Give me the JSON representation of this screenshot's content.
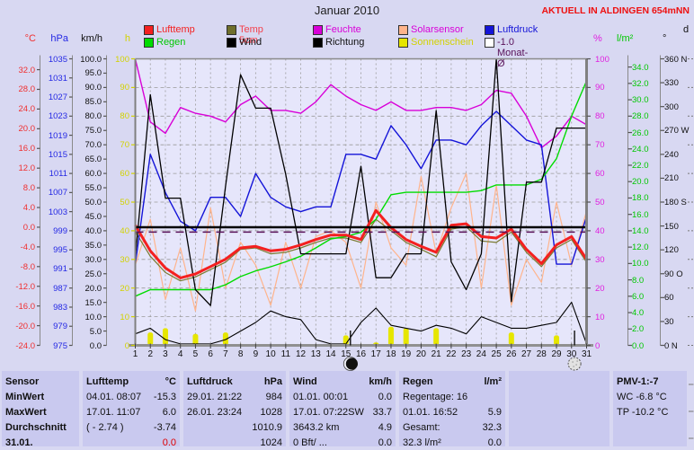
{
  "header": {
    "title": "Januar 2010",
    "status": "AKTUELL IN ALDINGEN 654mNN"
  },
  "legend": {
    "rows": [
      [
        {
          "label": "Lufttemp",
          "box": "#f42020",
          "text": "#f42020"
        },
        {
          "label": "Temp 5cm",
          "box": "#6f6f2c",
          "text": "#f4404c"
        },
        {
          "label": "Feuchte",
          "box": "#d800d8",
          "text": "#d800d8"
        },
        {
          "label": "Solarsensor",
          "box": "#ffb48c",
          "text": "#d800d8"
        },
        {
          "label": "Luftdruck",
          "box": "#1414d8",
          "text": "#1414d8"
        }
      ],
      [
        {
          "label": "Regen",
          "box": "#00dc00",
          "text": "#00c800"
        },
        {
          "label": "Wind",
          "box": "#000000",
          "text": "#101010"
        },
        {
          "label": "Richtung",
          "box": "#000000",
          "text": "#101010"
        },
        {
          "label": "Sonnenschein",
          "box": "#e6e600",
          "text": "#d2d200"
        },
        {
          "label": "-1.0 Monat-Ø",
          "box": "#ffffff",
          "text": "#581058"
        }
      ]
    ]
  },
  "chart_data": {
    "type": "line",
    "title": "Januar 2010",
    "x": {
      "days": [
        1,
        2,
        3,
        4,
        5,
        6,
        7,
        8,
        9,
        10,
        11,
        12,
        13,
        14,
        15,
        16,
        17,
        18,
        19,
        20,
        21,
        22,
        23,
        24,
        25,
        26,
        27,
        28,
        29,
        30,
        31
      ]
    },
    "axes": {
      "temp": {
        "unit": "°C",
        "color": "#f03030",
        "min": -24,
        "max": 34.2,
        "dec": 1,
        "ticks": [
          32,
          28,
          24,
          20,
          16,
          12,
          8,
          4,
          0,
          -4,
          -8,
          -12,
          -16,
          -20,
          -24
        ]
      },
      "hpa": {
        "unit": "hPa",
        "color": "#2428e4",
        "min": 975,
        "max": 1035,
        "dec": 0,
        "ticks": [
          1035,
          1031,
          1027,
          1023,
          1019,
          1015,
          1011,
          1007,
          1003,
          999,
          995,
          991,
          987,
          983,
          979,
          975
        ]
      },
      "kmh": {
        "unit": "km/h",
        "color": "#101010",
        "min": 0,
        "max": 100,
        "dec": 1,
        "ticks": [
          100,
          95,
          90,
          85,
          80,
          75,
          70,
          65,
          60,
          55,
          50,
          45,
          40,
          35,
          30,
          25,
          20,
          15,
          10,
          5,
          0
        ]
      },
      "h": {
        "unit": "h",
        "color": "#d2d200",
        "min": 0,
        "max": 100,
        "dec": 0,
        "ticks": [
          100,
          90,
          80,
          70,
          60,
          50,
          40,
          30,
          20,
          10,
          0
        ]
      },
      "pct": {
        "unit": "%",
        "color": "#e020e0",
        "min": 0,
        "max": 100,
        "dec": 0,
        "ticks": [
          100,
          90,
          80,
          70,
          60,
          50,
          40,
          30,
          20,
          10,
          0
        ]
      },
      "lm2": {
        "unit": "l/m²",
        "color": "#00c800",
        "min": 0,
        "max": 35,
        "dec": 1,
        "ticks": [
          34,
          32,
          30,
          28,
          26,
          24,
          22,
          20,
          18,
          16,
          14,
          12,
          10,
          8,
          6,
          4,
          2,
          0
        ]
      },
      "deg": {
        "unit": "°",
        "color": "#101010",
        "min": 0,
        "max": 360,
        "ticks": [
          {
            "v": 360,
            "t": "360 N"
          },
          {
            "v": 330,
            "t": "330"
          },
          {
            "v": 300,
            "t": "300"
          },
          {
            "v": 270,
            "t": "270 W"
          },
          {
            "v": 240,
            "t": "240"
          },
          {
            "v": 210,
            "t": "210"
          },
          {
            "v": 180,
            "t": "180 S"
          },
          {
            "v": 150,
            "t": "150"
          },
          {
            "v": 120,
            "t": "120"
          },
          {
            "v": 90,
            "t": "90 O"
          },
          {
            "v": 60,
            "t": "60"
          },
          {
            "v": 30,
            "t": "30"
          },
          {
            "v": 0,
            "t": "0 N"
          }
        ]
      },
      "d": {
        "unit": "d",
        "color": "#101010"
      }
    },
    "series": [
      {
        "name": "Solarsensor",
        "axis": "pct",
        "color": "#ffb48c",
        "width": 1.2,
        "values": [
          28,
          44,
          16,
          34,
          12,
          48,
          20,
          36,
          28,
          14,
          36,
          20,
          38,
          40,
          36,
          20,
          50,
          34,
          28,
          59,
          32,
          48,
          60,
          20,
          56,
          14,
          30,
          22,
          50,
          28,
          47
        ]
      },
      {
        "name": "Temp 5cm",
        "axis": "temp",
        "color": "#7a7a30",
        "width": 1.2,
        "values": [
          -0.9,
          -5.9,
          -9.2,
          -10.9,
          -10.1,
          -8.6,
          -7.1,
          -4.5,
          -4.2,
          -5.4,
          -5.1,
          -4.2,
          -3.1,
          -2.2,
          -2.2,
          -3.1,
          1.6,
          -0.7,
          -3.1,
          -4.5,
          -6.0,
          -0.4,
          0.1,
          -2.8,
          -3.1,
          -1.0,
          -5.1,
          -8.0,
          -4.2,
          -2.5,
          -7.1
        ]
      },
      {
        "name": "Feuchte",
        "axis": "pct",
        "color": "#d800d8",
        "width": 1.4,
        "values": [
          100,
          78,
          74,
          83,
          81,
          80,
          78,
          84,
          87,
          82,
          82,
          81,
          85,
          91,
          87,
          84,
          82,
          85,
          82,
          82,
          83,
          83,
          82,
          84,
          89,
          88,
          80,
          69,
          73,
          80,
          77
        ]
      },
      {
        "name": "Luftdruck",
        "axis": "hpa",
        "color": "#1414d8",
        "width": 1.4,
        "values": [
          992,
          1015,
          1007,
          1001,
          999,
          1006,
          1006,
          1002,
          1011,
          1006,
          1004,
          1003,
          1004,
          1004,
          1015,
          1015,
          1014,
          1021,
          1017,
          1012,
          1018,
          1018,
          1017,
          1021,
          1024,
          1021,
          1018,
          1017,
          992,
          992,
          1002
        ]
      },
      {
        "name": "Regen",
        "axis": "lm2",
        "color": "#00dc00",
        "width": 1.4,
        "values": [
          6.0,
          6.8,
          6.8,
          6.8,
          6.8,
          6.8,
          7.4,
          8.4,
          9.1,
          9.6,
          10.2,
          10.9,
          11.9,
          13.0,
          13.3,
          13.8,
          15.4,
          18.4,
          18.7,
          18.7,
          18.7,
          18.7,
          18.7,
          18.9,
          19.6,
          19.6,
          19.6,
          20.3,
          22.8,
          28.0,
          32.3
        ]
      },
      {
        "name": "Wind",
        "axis": "kmh",
        "color": "#000000",
        "width": 1.1,
        "values": [
          4,
          6,
          2,
          0.5,
          0.5,
          0.5,
          2,
          5,
          8,
          12,
          10,
          9,
          2,
          0.5,
          0.5,
          8,
          13,
          7,
          6,
          5,
          7,
          6,
          4,
          10,
          8,
          6,
          6,
          7,
          8,
          15,
          0.5
        ]
      },
      {
        "name": "Richtung",
        "axis": "deg",
        "color": "#000000",
        "width": 1.3,
        "values": [
          110,
          315,
          185,
          185,
          70,
          50,
          200,
          340,
          298,
          298,
          215,
          115,
          115,
          115,
          115,
          225,
          85,
          85,
          115,
          115,
          295,
          105,
          70,
          115,
          360,
          55,
          205,
          205,
          273,
          273,
          273
        ]
      },
      {
        "name": "Lufttemp",
        "axis": "temp",
        "color": "#f42020",
        "width": 3,
        "values": [
          0.4,
          -4.8,
          -8.3,
          -10.3,
          -9.5,
          -8.0,
          -6.5,
          -4.2,
          -3.9,
          -4.8,
          -4.5,
          -3.6,
          -2.5,
          -1.6,
          -1.6,
          -2.5,
          3.4,
          -0.1,
          -2.5,
          -3.9,
          -5.1,
          0.4,
          0.7,
          -1.9,
          -2.2,
          -0.4,
          -4.5,
          -7.4,
          -3.6,
          -1.9,
          -6.5
        ]
      }
    ],
    "bars": {
      "name": "Sonnenschein",
      "axis": "h",
      "color": "#e6e600",
      "values": [
        0,
        4.5,
        6,
        0.5,
        4,
        0.3,
        4.5,
        0.5,
        0,
        0.3,
        0.3,
        0.3,
        0.3,
        0,
        3.5,
        0.5,
        1,
        6.5,
        6,
        0.3,
        6,
        0.3,
        0.3,
        0.3,
        0,
        4.5,
        0.5,
        0.3,
        3.5,
        0.3,
        0
      ]
    },
    "reference_lines": [
      {
        "name": "null-grad-linie",
        "axis": "temp",
        "value": 0,
        "color": "#000000",
        "width": 2.5,
        "dash": ""
      },
      {
        "name": "monat-mittel",
        "axis": "temp",
        "value": -1.0,
        "color": "#581058",
        "width": 1.5,
        "dash": "9,6",
        "label": "-1.0 Monat-Ø"
      }
    ],
    "moons": [
      {
        "day": 15.3,
        "phase": "dark"
      },
      {
        "day": 30.2,
        "phase": "light"
      }
    ]
  },
  "table": {
    "row_labels": [
      "Sensor",
      "MinWert",
      "MaxWert",
      "Durchschnitt",
      "31.01."
    ],
    "columns": [
      {
        "header": "Lufttemp",
        "unit": "°C",
        "rows": [
          [
            "04.01.  08:07",
            "-15.3",
            ""
          ],
          [
            "17.01.  11:07",
            "6.0",
            ""
          ],
          [
            "( - 2.74 )",
            "-3.74",
            ""
          ],
          [
            "",
            "0.0",
            "red"
          ]
        ]
      },
      {
        "header": "Luftdruck",
        "unit": "hPa",
        "rows": [
          [
            "29.01.  21:22",
            "984",
            ""
          ],
          [
            "26.01.  23:24",
            "1028",
            ""
          ],
          [
            "",
            "1010.9",
            ""
          ],
          [
            "",
            "1024",
            ""
          ]
        ]
      },
      {
        "header": "Wind",
        "unit": "km/h",
        "rows": [
          [
            "01.01.  00:01",
            "0.0",
            ""
          ],
          [
            "17.01.  07:22SW",
            "33.7",
            ""
          ],
          [
            "3643.2 km",
            "4.9",
            ""
          ],
          [
            "0 Bft/ ...",
            "0.0",
            ""
          ]
        ]
      },
      {
        "header": "Regen",
        "unit": "l/m²",
        "rows": [
          [
            "Regentage: 16",
            "",
            ""
          ],
          [
            "01.01.  16:52",
            "5.9",
            ""
          ],
          [
            "Gesamt:",
            "32.3",
            ""
          ],
          [
            "32.3 l/m²",
            "0.0",
            ""
          ]
        ]
      },
      {
        "header": "",
        "unit": "",
        "rows": [
          [
            "",
            "",
            ""
          ],
          [
            "",
            "",
            ""
          ],
          [
            "",
            "",
            ""
          ],
          [
            "",
            "",
            ""
          ]
        ]
      },
      {
        "header": "PMV-1:-7",
        "unit": "",
        "rows": [
          [
            "WC -6.8 °C",
            "",
            ""
          ],
          [
            "TP -10.2 °C",
            "",
            ""
          ],
          [
            "",
            "",
            ""
          ],
          [
            "",
            "",
            ""
          ]
        ]
      }
    ]
  }
}
